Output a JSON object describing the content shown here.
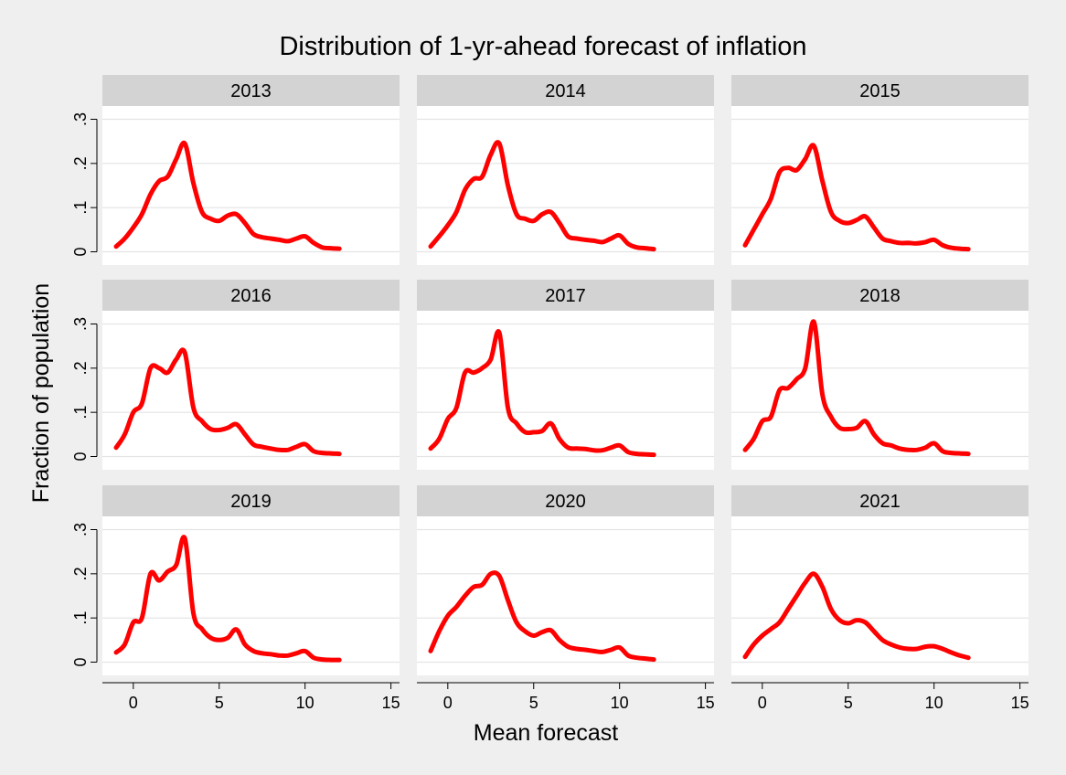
{
  "chart_data": {
    "type": "line",
    "title": "Distribution of 1-yr-ahead forecast of inflation",
    "xlabel": "Mean forecast",
    "ylabel": "Fraction of population",
    "xlim": [
      -1.8,
      15.5
    ],
    "ylim": [
      -0.03,
      0.33
    ],
    "xticks": [
      0,
      5,
      10,
      15
    ],
    "xtick_labels": [
      "0",
      "5",
      "10",
      "15"
    ],
    "yticks": [
      0,
      0.1,
      0.2,
      0.3
    ],
    "ytick_labels": [
      "0",
      ".1",
      ".2",
      ".3"
    ],
    "grid": true,
    "layout": "3x3 small multiples",
    "line_color": "#ff0000",
    "panels": [
      {
        "label": "2013",
        "x": [
          -1,
          -0.5,
          0,
          0.5,
          1,
          1.5,
          2,
          2.5,
          3,
          3.5,
          4,
          4.5,
          5,
          5.5,
          6,
          6.5,
          7,
          7.5,
          8,
          8.5,
          9,
          9.5,
          10,
          10.5,
          11,
          11.5,
          12
        ],
        "y": [
          0.012,
          0.03,
          0.055,
          0.085,
          0.13,
          0.16,
          0.17,
          0.21,
          0.245,
          0.155,
          0.09,
          0.075,
          0.07,
          0.082,
          0.085,
          0.065,
          0.04,
          0.033,
          0.03,
          0.027,
          0.024,
          0.03,
          0.035,
          0.02,
          0.01,
          0.008,
          0.007
        ]
      },
      {
        "label": "2014",
        "x": [
          -1,
          -0.5,
          0,
          0.5,
          1,
          1.5,
          2,
          2.5,
          3,
          3.5,
          4,
          4.5,
          5,
          5.5,
          6,
          6.5,
          7,
          7.5,
          8,
          8.5,
          9,
          9.5,
          10,
          10.5,
          11,
          11.5,
          12
        ],
        "y": [
          0.012,
          0.035,
          0.06,
          0.09,
          0.14,
          0.165,
          0.17,
          0.22,
          0.245,
          0.15,
          0.085,
          0.075,
          0.07,
          0.085,
          0.09,
          0.065,
          0.035,
          0.03,
          0.027,
          0.025,
          0.022,
          0.03,
          0.037,
          0.018,
          0.01,
          0.008,
          0.006
        ]
      },
      {
        "label": "2015",
        "x": [
          -1,
          -0.5,
          0,
          0.5,
          1,
          1.5,
          2,
          2.5,
          3,
          3.5,
          4,
          4.5,
          5,
          5.5,
          6,
          6.5,
          7,
          7.5,
          8,
          8.5,
          9,
          9.5,
          10,
          10.5,
          11,
          11.5,
          12
        ],
        "y": [
          0.015,
          0.05,
          0.085,
          0.12,
          0.18,
          0.19,
          0.185,
          0.21,
          0.24,
          0.16,
          0.09,
          0.07,
          0.065,
          0.072,
          0.08,
          0.055,
          0.03,
          0.024,
          0.02,
          0.02,
          0.019,
          0.022,
          0.027,
          0.015,
          0.009,
          0.007,
          0.006
        ]
      },
      {
        "label": "2016",
        "x": [
          -1,
          -0.5,
          0,
          0.5,
          1,
          1.5,
          2,
          2.5,
          3,
          3.5,
          4,
          4.5,
          5,
          5.5,
          6,
          6.5,
          7,
          7.5,
          8,
          8.5,
          9,
          9.5,
          10,
          10.5,
          11,
          11.5,
          12
        ],
        "y": [
          0.02,
          0.05,
          0.1,
          0.12,
          0.2,
          0.2,
          0.19,
          0.22,
          0.235,
          0.11,
          0.08,
          0.062,
          0.06,
          0.065,
          0.073,
          0.05,
          0.027,
          0.022,
          0.018,
          0.015,
          0.015,
          0.022,
          0.028,
          0.012,
          0.008,
          0.007,
          0.006
        ]
      },
      {
        "label": "2017",
        "x": [
          -1,
          -0.5,
          0,
          0.5,
          1,
          1.5,
          2,
          2.5,
          3,
          3.5,
          4,
          4.5,
          5,
          5.5,
          6,
          6.5,
          7,
          7.5,
          8,
          8.5,
          9,
          9.5,
          10,
          10.5,
          11,
          11.5,
          12
        ],
        "y": [
          0.018,
          0.04,
          0.085,
          0.11,
          0.19,
          0.19,
          0.2,
          0.22,
          0.28,
          0.11,
          0.075,
          0.055,
          0.055,
          0.058,
          0.075,
          0.04,
          0.02,
          0.018,
          0.017,
          0.014,
          0.014,
          0.02,
          0.025,
          0.01,
          0.006,
          0.005,
          0.004
        ]
      },
      {
        "label": "2018",
        "x": [
          -1,
          -0.5,
          0,
          0.5,
          1,
          1.5,
          2,
          2.5,
          3,
          3.5,
          4,
          4.5,
          5,
          5.5,
          6,
          6.5,
          7,
          7.5,
          8,
          8.5,
          9,
          9.5,
          10,
          10.5,
          11,
          11.5,
          12
        ],
        "y": [
          0.015,
          0.04,
          0.08,
          0.09,
          0.15,
          0.155,
          0.175,
          0.2,
          0.305,
          0.14,
          0.09,
          0.065,
          0.062,
          0.065,
          0.08,
          0.05,
          0.03,
          0.025,
          0.018,
          0.015,
          0.015,
          0.02,
          0.03,
          0.012,
          0.008,
          0.007,
          0.006
        ]
      },
      {
        "label": "2019",
        "x": [
          -1,
          -0.5,
          0,
          0.5,
          1,
          1.5,
          2,
          2.5,
          3,
          3.5,
          4,
          4.5,
          5,
          5.5,
          6,
          6.5,
          7,
          7.5,
          8,
          8.5,
          9,
          9.5,
          10,
          10.5,
          11,
          11.5,
          12
        ],
        "y": [
          0.022,
          0.04,
          0.09,
          0.1,
          0.2,
          0.185,
          0.205,
          0.22,
          0.28,
          0.11,
          0.075,
          0.055,
          0.05,
          0.055,
          0.074,
          0.04,
          0.025,
          0.02,
          0.018,
          0.015,
          0.015,
          0.02,
          0.025,
          0.01,
          0.006,
          0.005,
          0.005
        ]
      },
      {
        "label": "2020",
        "x": [
          -1,
          -0.5,
          0,
          0.5,
          1,
          1.5,
          2,
          2.5,
          3,
          3.5,
          4,
          4.5,
          5,
          5.5,
          6,
          6.5,
          7,
          7.5,
          8,
          8.5,
          9,
          9.5,
          10,
          10.5,
          11,
          11.5,
          12
        ],
        "y": [
          0.025,
          0.07,
          0.105,
          0.125,
          0.15,
          0.17,
          0.175,
          0.2,
          0.195,
          0.14,
          0.09,
          0.07,
          0.06,
          0.068,
          0.072,
          0.05,
          0.035,
          0.03,
          0.028,
          0.025,
          0.023,
          0.028,
          0.033,
          0.015,
          0.01,
          0.008,
          0.006
        ]
      },
      {
        "label": "2021",
        "x": [
          -1,
          -0.5,
          0,
          0.5,
          1,
          1.5,
          2,
          2.5,
          3,
          3.5,
          4,
          4.5,
          5,
          5.5,
          6,
          6.5,
          7,
          7.5,
          8,
          8.5,
          9,
          9.5,
          10,
          10.5,
          11,
          11.5,
          12
        ],
        "y": [
          0.012,
          0.04,
          0.06,
          0.075,
          0.09,
          0.12,
          0.15,
          0.18,
          0.2,
          0.17,
          0.12,
          0.095,
          0.088,
          0.095,
          0.09,
          0.07,
          0.05,
          0.04,
          0.033,
          0.03,
          0.03,
          0.035,
          0.036,
          0.03,
          0.022,
          0.015,
          0.01
        ]
      }
    ]
  }
}
